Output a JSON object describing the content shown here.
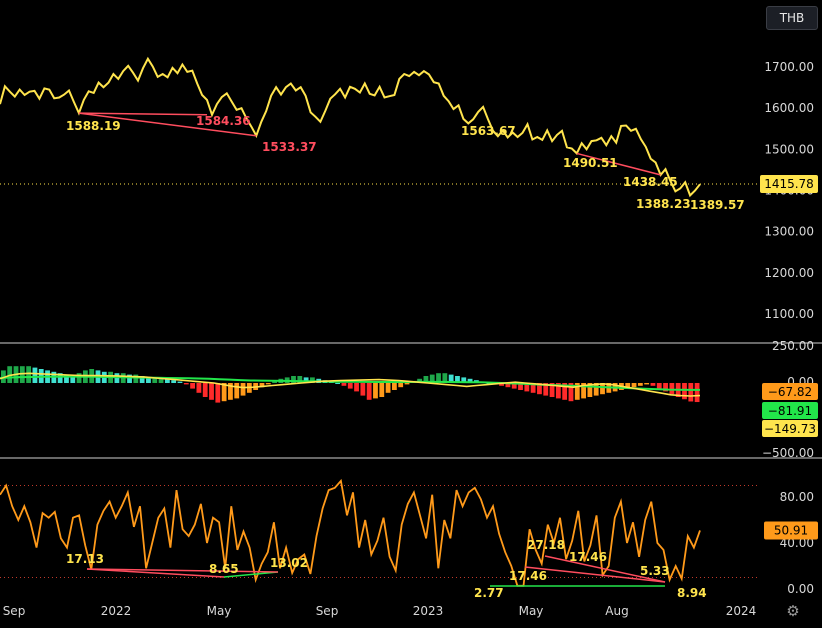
{
  "currency": "THB",
  "settings_icon": "settings-gear-icon",
  "chart_data": [
    {
      "type": "line",
      "panel": "price",
      "color": "#ffe44d",
      "yticks": [
        1100,
        1200,
        1300,
        1400,
        1500,
        1600,
        1700
      ],
      "ytick_labels": [
        "1100.00",
        "1200.00",
        "1300.00",
        "1400.00",
        "1500.00",
        "1600.00",
        "1700.00"
      ],
      "current_value": "1415.78",
      "series": [
        {
          "values": [
            1610,
            1653,
            1640,
            1628,
            1645,
            1632,
            1640,
            1642,
            1623,
            1648,
            1645,
            1624,
            1626,
            1633,
            1643,
            1615,
            1588,
            1620,
            1641,
            1637,
            1662,
            1651,
            1662,
            1683,
            1671,
            1690,
            1703,
            1686,
            1667,
            1697,
            1720,
            1701,
            1676,
            1683,
            1675,
            1698,
            1685,
            1706,
            1688,
            1691,
            1660,
            1632,
            1620,
            1584,
            1610,
            1627,
            1636,
            1616,
            1596,
            1600,
            1575,
            1555,
            1533,
            1567,
            1593,
            1630,
            1651,
            1633,
            1651,
            1660,
            1643,
            1651,
            1630,
            1590,
            1579,
            1567,
            1594,
            1623,
            1634,
            1647,
            1626,
            1652,
            1647,
            1638,
            1660,
            1635,
            1631,
            1652,
            1626,
            1629,
            1632,
            1671,
            1683,
            1678,
            1688,
            1680,
            1690,
            1682,
            1663,
            1660,
            1630,
            1617,
            1598,
            1607,
            1574,
            1563,
            1573,
            1591,
            1603,
            1573,
            1545,
            1532,
            1546,
            1529,
            1541,
            1530,
            1540,
            1561,
            1524,
            1530,
            1523,
            1546,
            1520,
            1535,
            1545,
            1505,
            1502,
            1490,
            1515,
            1500,
            1520,
            1522,
            1528,
            1510,
            1532,
            1516,
            1557,
            1558,
            1545,
            1550,
            1525,
            1506,
            1477,
            1468,
            1438,
            1452,
            1423,
            1398,
            1405,
            1420,
            1388,
            1400,
            1415
          ]
        }
      ],
      "annotations": [
        {
          "text": "1588.19",
          "color": "#ffe44d"
        },
        {
          "text": "1584.36",
          "color": "#ff4d5e"
        },
        {
          "text": "1533.37",
          "color": "#ff4d5e"
        },
        {
          "text": "1563.67",
          "color": "#ffe44d"
        },
        {
          "text": "1490.51",
          "color": "#ffe44d"
        },
        {
          "text": "1438.45",
          "color": "#ffe44d"
        },
        {
          "text": "1388.23",
          "color": "#ffe44d"
        },
        {
          "text": "1389.57",
          "color": "#ffe44d"
        }
      ]
    },
    {
      "type": "bar",
      "panel": "oscillator",
      "yticks": [
        250,
        0,
        -500
      ],
      "ytick_labels": [
        "250.00",
        "0.00",
        "−500.00"
      ],
      "tags": [
        {
          "text": "−67.82",
          "color": "#ff9a1a"
        },
        {
          "text": "−81.91",
          "color": "#22e64a"
        },
        {
          "text": "−149.73",
          "color": "#ffe44d"
        }
      ],
      "histogram": [
        45,
        60,
        60,
        60,
        60,
        55,
        50,
        45,
        40,
        35,
        30,
        25,
        35,
        45,
        50,
        45,
        40,
        40,
        35,
        35,
        30,
        30,
        25,
        20,
        20,
        20,
        15,
        10,
        5,
        -5,
        -20,
        -35,
        -50,
        -60,
        -70,
        -65,
        -60,
        -55,
        -45,
        -35,
        -25,
        -15,
        -5,
        5,
        15,
        20,
        25,
        25,
        20,
        20,
        15,
        10,
        5,
        0,
        -10,
        -20,
        -30,
        -45,
        -60,
        -55,
        -50,
        -35,
        -25,
        -15,
        -5,
        5,
        15,
        25,
        30,
        35,
        35,
        30,
        25,
        20,
        15,
        10,
        5,
        0,
        -5,
        -10,
        -15,
        -20,
        -25,
        -30,
        -35,
        -40,
        -45,
        -50,
        -55,
        -60,
        -65,
        -60,
        -55,
        -50,
        -45,
        -40,
        -35,
        -30,
        -25,
        -20,
        -15,
        -10,
        -5,
        -10,
        -20,
        -30,
        -40,
        -50,
        -58,
        -66,
        -68
      ],
      "signal": [
        60,
        65,
        70,
        72,
        74,
        75,
        76,
        76,
        75,
        74,
        72,
        70,
        68,
        66,
        64,
        62,
        60,
        58,
        56,
        54,
        50,
        45,
        40,
        35,
        30,
        28,
        26,
        25,
        24,
        22,
        20,
        18,
        16,
        15,
        14,
        13,
        12,
        12,
        12,
        12,
        13,
        13,
        13,
        12,
        11,
        10,
        8,
        5,
        0,
        -5,
        -10,
        -15,
        -20,
        -25,
        -30,
        -35,
        -40,
        -45,
        -50,
        -55,
        -60,
        -65,
        -70,
        -74,
        -78,
        -80,
        -82,
        -82
      ],
      "macd": [
        50,
        90,
        110,
        115,
        110,
        105,
        100,
        95,
        90,
        88,
        88,
        86,
        84,
        80,
        75,
        70,
        60,
        50,
        40,
        30,
        20,
        10,
        0,
        -20,
        -40,
        -55,
        -50,
        -40,
        -30,
        -20,
        -10,
        0,
        10,
        20,
        25,
        30,
        32,
        35,
        38,
        40,
        35,
        30,
        20,
        10,
        0,
        -10,
        -20,
        -30,
        -40,
        -30,
        -20,
        -10,
        0,
        10,
        0,
        -10,
        -20,
        -30,
        -40,
        -50,
        -30,
        -20,
        -10,
        -20,
        -40,
        -60,
        -80,
        -100,
        -120,
        -140,
        -150,
        -155,
        -150
      ]
    },
    {
      "type": "line",
      "panel": "rsi",
      "color": "#ff9a1a",
      "yticks": [
        0,
        40,
        80
      ],
      "ytick_labels": [
        "0.00",
        "40.00",
        "80.00"
      ],
      "current_value": "50.91",
      "series": [
        {
          "values": [
            82,
            90,
            72,
            60,
            72,
            58,
            36,
            66,
            62,
            67,
            44,
            36,
            62,
            64,
            38,
            17,
            56,
            68,
            76,
            62,
            72,
            84,
            54,
            72,
            18,
            40,
            62,
            70,
            36,
            86,
            52,
            46,
            56,
            74,
            40,
            62,
            58,
            18,
            72,
            34,
            50,
            36,
            8,
            22,
            32,
            58,
            18,
            36,
            14,
            26,
            30,
            13,
            46,
            70,
            86,
            88,
            94,
            64,
            84,
            36,
            60,
            30,
            42,
            62,
            28,
            16,
            56,
            74,
            84,
            64,
            44,
            82,
            18,
            60,
            44,
            86,
            72,
            84,
            88,
            78,
            62,
            72,
            48,
            32,
            20,
            2.8,
            2.8,
            52,
            34,
            22,
            56,
            40,
            62,
            26,
            42,
            68,
            24,
            38,
            64,
            12,
            20,
            62,
            76,
            40,
            58,
            28,
            60,
            76,
            40,
            34,
            8,
            20,
            8.9,
            46,
            36,
            51
          ]
        }
      ],
      "overbought": 90,
      "oversold": 10,
      "annotations": [
        {
          "text": "17.13",
          "color": "#ffe44d"
        },
        {
          "text": "8.65",
          "color": "#ffe44d"
        },
        {
          "text": "13.02",
          "color": "#ffe44d"
        },
        {
          "text": "27.18",
          "color": "#ffe44d"
        },
        {
          "text": "17.46",
          "color": "#ffe44d"
        },
        {
          "text": "17.46",
          "color": "#ffe44d"
        },
        {
          "text": "5.33",
          "color": "#ffe44d"
        },
        {
          "text": "2.77",
          "color": "#ffe44d"
        },
        {
          "text": "8.94",
          "color": "#ffe44d"
        }
      ]
    }
  ],
  "x_axis": {
    "labels": [
      "Sep",
      "2022",
      "May",
      "Sep",
      "2023",
      "May",
      "Aug",
      "2024"
    ]
  }
}
